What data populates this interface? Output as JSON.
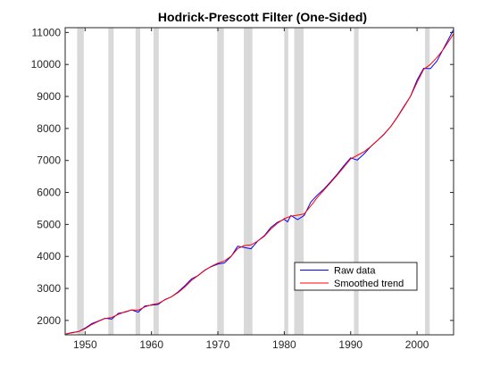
{
  "chart_data": {
    "type": "line",
    "title": "Hodrick-Prescott  Filter  (One-Sided)",
    "xlabel": "",
    "ylabel": "",
    "xlim": [
      1947,
      2005.5
    ],
    "ylim": [
      1550,
      11150
    ],
    "xticks": [
      1950,
      1960,
      1970,
      1980,
      1990,
      2000
    ],
    "yticks": [
      2000,
      3000,
      4000,
      5000,
      6000,
      7000,
      8000,
      9000,
      10000,
      11000
    ],
    "grid": false,
    "legend_position": "bottom-right",
    "recession_bands": [
      [
        1948.8,
        1949.8
      ],
      [
        1953.5,
        1954.3
      ],
      [
        1957.6,
        1958.3
      ],
      [
        1960.3,
        1961.1
      ],
      [
        1969.9,
        1970.9
      ],
      [
        1973.9,
        1975.2
      ],
      [
        1980.0,
        1980.6
      ],
      [
        1981.5,
        1982.9
      ],
      [
        1990.5,
        1991.2
      ],
      [
        2001.2,
        2001.9
      ]
    ],
    "series": [
      {
        "name": "Raw data",
        "color": "#0000ff",
        "x": [
          1947,
          1948,
          1949,
          1950,
          1951,
          1952,
          1953,
          1954,
          1955,
          1956,
          1957,
          1958,
          1959,
          1960,
          1961,
          1962,
          1963,
          1964,
          1965,
          1966,
          1967,
          1968,
          1969,
          1970,
          1971,
          1972,
          1973,
          1974,
          1975,
          1976,
          1977,
          1978,
          1979,
          1980,
          1980.5,
          1981,
          1982,
          1983,
          1984,
          1985,
          1986,
          1987,
          1988,
          1989,
          1990,
          1991,
          1992,
          1993,
          1994,
          1995,
          1996,
          1997,
          1998,
          1999,
          2000,
          2001,
          2002,
          2003,
          2004,
          2005.5
        ],
        "y": [
          1570,
          1620,
          1650,
          1760,
          1900,
          1980,
          2070,
          2040,
          2220,
          2260,
          2330,
          2260,
          2450,
          2480,
          2500,
          2650,
          2740,
          2890,
          3080,
          3290,
          3400,
          3570,
          3680,
          3760,
          3800,
          4000,
          4320,
          4280,
          4240,
          4480,
          4650,
          4910,
          5070,
          5160,
          5080,
          5280,
          5150,
          5280,
          5700,
          5920,
          6110,
          6340,
          6580,
          6840,
          7080,
          7010,
          7200,
          7430,
          7620,
          7810,
          8050,
          8350,
          8680,
          9000,
          9510,
          9880,
          9870,
          10110,
          10500,
          11090
        ]
      },
      {
        "name": "Smoothed trend",
        "color": "#ff0000",
        "x": [
          1947,
          1948,
          1949,
          1950,
          1951,
          1952,
          1953,
          1954,
          1955,
          1956,
          1957,
          1958,
          1959,
          1960,
          1961,
          1962,
          1963,
          1964,
          1965,
          1966,
          1967,
          1968,
          1969,
          1970,
          1971,
          1972,
          1973,
          1974,
          1975,
          1976,
          1977,
          1978,
          1979,
          1980,
          1981,
          1982,
          1983,
          1984,
          1985,
          1986,
          1987,
          1988,
          1989,
          1990,
          1991,
          1992,
          1993,
          1994,
          1995,
          1996,
          1997,
          1998,
          1999,
          2000,
          2001,
          2002,
          2003,
          2004,
          2005.5
        ],
        "y": [
          1570,
          1610,
          1650,
          1740,
          1870,
          1970,
          2060,
          2090,
          2190,
          2270,
          2330,
          2320,
          2420,
          2490,
          2530,
          2640,
          2740,
          2870,
          3040,
          3250,
          3400,
          3560,
          3690,
          3790,
          3860,
          4010,
          4250,
          4340,
          4360,
          4480,
          4630,
          4860,
          5040,
          5180,
          5260,
          5290,
          5330,
          5580,
          5850,
          6080,
          6310,
          6550,
          6800,
          7050,
          7160,
          7270,
          7430,
          7620,
          7820,
          8050,
          8340,
          8660,
          9000,
          9440,
          9850,
          10000,
          10220,
          10480,
          10960
        ]
      }
    ]
  }
}
